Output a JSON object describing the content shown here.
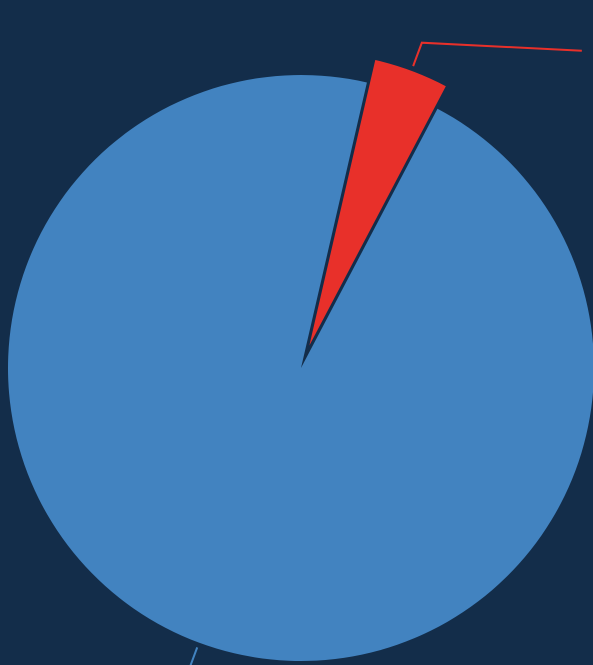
{
  "chart_data": {
    "type": "pie",
    "slices": [
      {
        "value": 4.1,
        "color": "#e8302a",
        "exploded": true
      },
      {
        "value": 95.9,
        "color": "#4283c0",
        "exploded": false
      }
    ],
    "start_angle_deg": 13,
    "background": "#132d4a",
    "legend": "none"
  }
}
